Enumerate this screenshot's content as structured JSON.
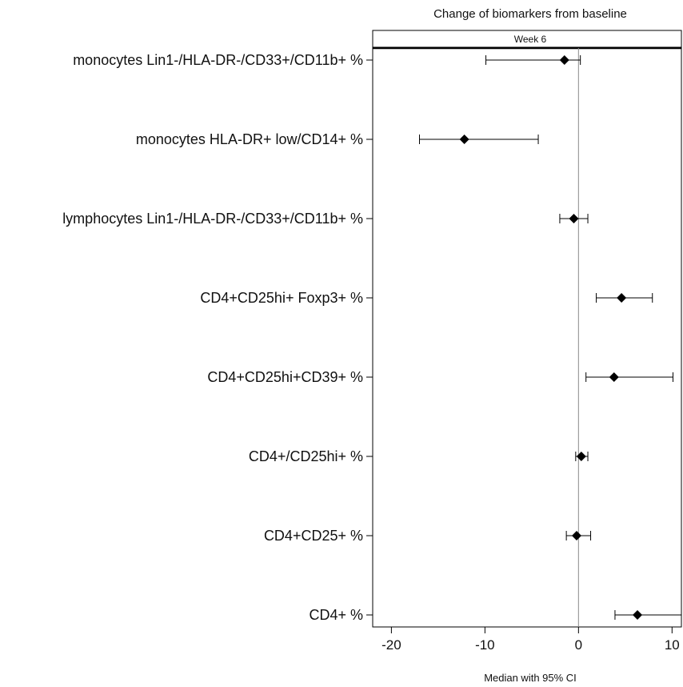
{
  "chart_data": {
    "type": "forest",
    "title": "Change of biomarkers from baseline",
    "panel_label": "Week 6",
    "xlabel": "Median with 95% CI",
    "ylabel": "",
    "xlim": [
      -22,
      11
    ],
    "xticks": [
      -20,
      -10,
      0,
      10
    ],
    "reference_line": 0,
    "grid": false,
    "marker": "diamond",
    "categories": [
      "monocytes Lin1-/HLA-DR-/CD33+/CD11b+ %",
      "monocytes HLA-DR+ low/CD14+ %",
      "lymphocytes Lin1-/HLA-DR-/CD33+/CD11b+ %",
      "CD4+CD25hi+ Foxp3+ %",
      "CD4+CD25hi+CD39+ %",
      "CD4+/CD25hi+ %",
      "CD4+CD25+ %",
      "CD4+ %"
    ],
    "median": [
      -1.5,
      -12.2,
      -0.5,
      4.6,
      3.8,
      0.3,
      -0.2,
      6.3
    ],
    "ci_low": [
      -9.9,
      -17.0,
      -2.0,
      1.9,
      0.8,
      -0.3,
      -1.3,
      3.9
    ],
    "ci_high": [
      0.2,
      -4.3,
      1.0,
      7.9,
      10.1,
      1.0,
      1.3,
      11.4
    ]
  }
}
